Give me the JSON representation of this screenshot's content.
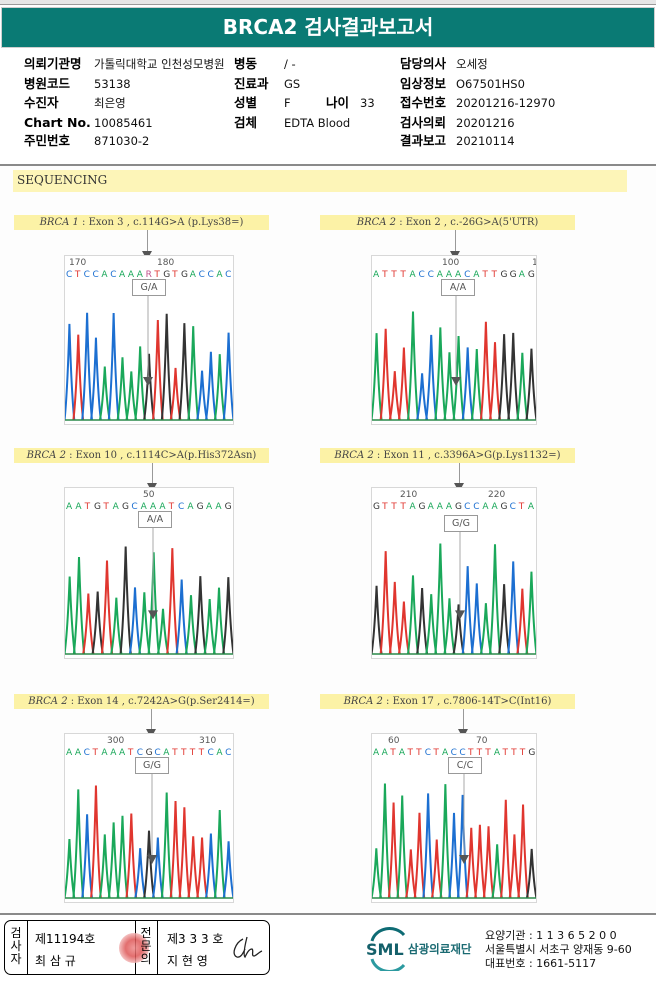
{
  "header": {
    "title": "BRCA2 검사결과보고서"
  },
  "patient_info": {
    "left": [
      {
        "label": "의뢰기관명",
        "value": "가톨릭대학교 인천성모병원"
      },
      {
        "label": "병원코드",
        "value": "53138"
      },
      {
        "label": "수진자",
        "value": "최은영"
      },
      {
        "label": "Chart No.",
        "value": "10085461"
      },
      {
        "label": "주민번호",
        "value": "871030-2"
      }
    ],
    "middle": [
      {
        "label": "병동",
        "value": "/ -"
      },
      {
        "label": "진료과",
        "value": "GS"
      },
      {
        "label": "성별",
        "value": "F"
      },
      {
        "label": "검체",
        "value": "EDTA Blood"
      }
    ],
    "age": {
      "label": "나이",
      "value": "33"
    },
    "right": [
      {
        "label": "담당의사",
        "value": "오세정"
      },
      {
        "label": "임상정보",
        "value": "O67501HS0"
      },
      {
        "label": "접수번호",
        "value": "20201216-12970"
      },
      {
        "label": "검사의뢰",
        "value": "20201216"
      },
      {
        "label": "결과보고",
        "value": "20210114"
      }
    ]
  },
  "section": {
    "title": "SEQUENCING"
  },
  "variants": [
    {
      "gene": "BRCA 1",
      "desc": " : Exon 3 , c.114G>A (p.Lys38=)",
      "genotype": "G/A",
      "sequence": "CTCCACAAARTGTGACCAC",
      "pos_labels": [
        "170",
        "180"
      ]
    },
    {
      "gene": "BRCA 2",
      "desc": " : Exon 2 , c.-26G>A(5'UTR)",
      "genotype": "A/A",
      "sequence": "ATTTACCAAACATTGGAG",
      "pos_labels": [
        "100",
        "1"
      ]
    },
    {
      "gene": "BRCA 2",
      "desc": " : Exon 10 , c.1114C>A(p.His372Asn)",
      "genotype": "A/A",
      "sequence": "AATGTAGCAAATCAGAAG",
      "pos_labels": [
        "50"
      ]
    },
    {
      "gene": "BRCA 2",
      "desc": " : Exon 11 , c.3396A>G(p.Lys1132=)",
      "genotype": "G/G",
      "sequence": "GTTTAGAAAGCCAAGCTA",
      "pos_labels": [
        "210",
        "220"
      ]
    },
    {
      "gene": "BRCA 2",
      "desc": " : Exon 14 , c.7242A>G(p.Ser2414=)",
      "genotype": "G/G",
      "sequence": "AACTAAATCGCATTTTCAC",
      "pos_labels": [
        "300",
        "310"
      ]
    },
    {
      "gene": "BRCA 2",
      "desc": " : Exon 17 , c.7806-14T>C(Int16)",
      "genotype": "C/C",
      "sequence": "AATATTCTACCTTTATTTG",
      "pos_labels": [
        "60",
        "70"
      ]
    }
  ],
  "footer": {
    "examiner_title": "검사자",
    "examiner_no": "제11194호",
    "examiner_name": "최 삼 규",
    "specialist_title": "전문의",
    "specialist_no": "제3 3 3 호",
    "specialist_name": "지 현 영",
    "org_logo": "SML",
    "org_name": "삼광의료재단",
    "address_lines": [
      "요양기관 : 1 1 3 6 5 2 0 0",
      "서울특별시 서초구 양재동 9-60",
      "대표번호 : 1661-5117"
    ]
  },
  "colors": {
    "header_bg": "#0a7a74",
    "banner": "#fdf5b8",
    "A": "#1aa85a",
    "C": "#1c6fd1",
    "G": "#333333",
    "T": "#e0362f"
  }
}
